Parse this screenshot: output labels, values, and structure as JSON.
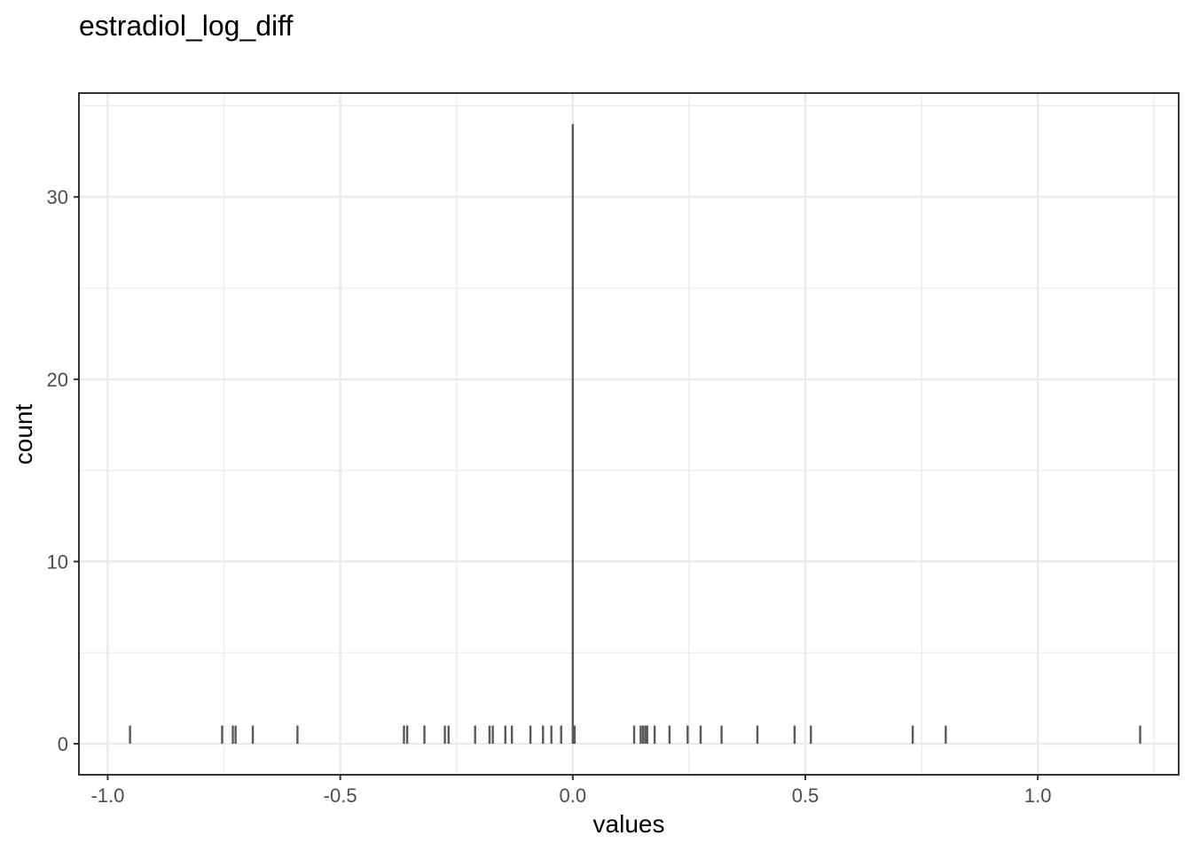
{
  "chart_data": {
    "type": "bar",
    "title": "estradiol_log_diff",
    "xlabel": "values",
    "ylabel": "count",
    "xlim": [
      -1.0619,
      1.3029
    ],
    "ylim": [
      -1.7,
      35.7
    ],
    "x_minor_breaks": [
      -0.75,
      -0.25,
      0.25,
      0.75,
      1.25
    ],
    "y_minor_breaks": [
      5,
      15,
      25,
      35
    ],
    "x_ticks": [
      {
        "value": -1.0,
        "label": "-1.0"
      },
      {
        "value": -0.5,
        "label": "-0.5"
      },
      {
        "value": 0.0,
        "label": "0.0"
      },
      {
        "value": 0.5,
        "label": "0.5"
      },
      {
        "value": 1.0,
        "label": "1.0"
      }
    ],
    "y_ticks": [
      {
        "value": 0,
        "label": "0"
      },
      {
        "value": 10,
        "label": "10"
      },
      {
        "value": 20,
        "label": "20"
      },
      {
        "value": 30,
        "label": "30"
      }
    ],
    "grid": true,
    "bars": [
      {
        "x": -0.952,
        "count": 1
      },
      {
        "x": -0.754,
        "count": 1
      },
      {
        "x": -0.731,
        "count": 1
      },
      {
        "x": -0.725,
        "count": 1
      },
      {
        "x": -0.688,
        "count": 1
      },
      {
        "x": -0.592,
        "count": 1
      },
      {
        "x": -0.363,
        "count": 1
      },
      {
        "x": -0.356,
        "count": 1
      },
      {
        "x": -0.319,
        "count": 1
      },
      {
        "x": -0.275,
        "count": 1
      },
      {
        "x": -0.267,
        "count": 1
      },
      {
        "x": -0.21,
        "count": 1
      },
      {
        "x": -0.179,
        "count": 1
      },
      {
        "x": -0.172,
        "count": 1
      },
      {
        "x": -0.145,
        "count": 1
      },
      {
        "x": -0.131,
        "count": 1
      },
      {
        "x": -0.091,
        "count": 1
      },
      {
        "x": -0.064,
        "count": 1
      },
      {
        "x": -0.046,
        "count": 1
      },
      {
        "x": -0.025,
        "count": 1
      },
      {
        "x": 0.0,
        "count": 34
      },
      {
        "x": 0.004,
        "count": 1
      },
      {
        "x": 0.132,
        "count": 1
      },
      {
        "x": 0.146,
        "count": 1
      },
      {
        "x": 0.151,
        "count": 1
      },
      {
        "x": 0.156,
        "count": 1
      },
      {
        "x": 0.16,
        "count": 1
      },
      {
        "x": 0.176,
        "count": 1
      },
      {
        "x": 0.208,
        "count": 1
      },
      {
        "x": 0.247,
        "count": 1
      },
      {
        "x": 0.275,
        "count": 1
      },
      {
        "x": 0.32,
        "count": 1
      },
      {
        "x": 0.397,
        "count": 1
      },
      {
        "x": 0.477,
        "count": 1
      },
      {
        "x": 0.512,
        "count": 1
      },
      {
        "x": 0.731,
        "count": 1
      },
      {
        "x": 0.802,
        "count": 1
      },
      {
        "x": 1.22,
        "count": 1
      }
    ]
  }
}
